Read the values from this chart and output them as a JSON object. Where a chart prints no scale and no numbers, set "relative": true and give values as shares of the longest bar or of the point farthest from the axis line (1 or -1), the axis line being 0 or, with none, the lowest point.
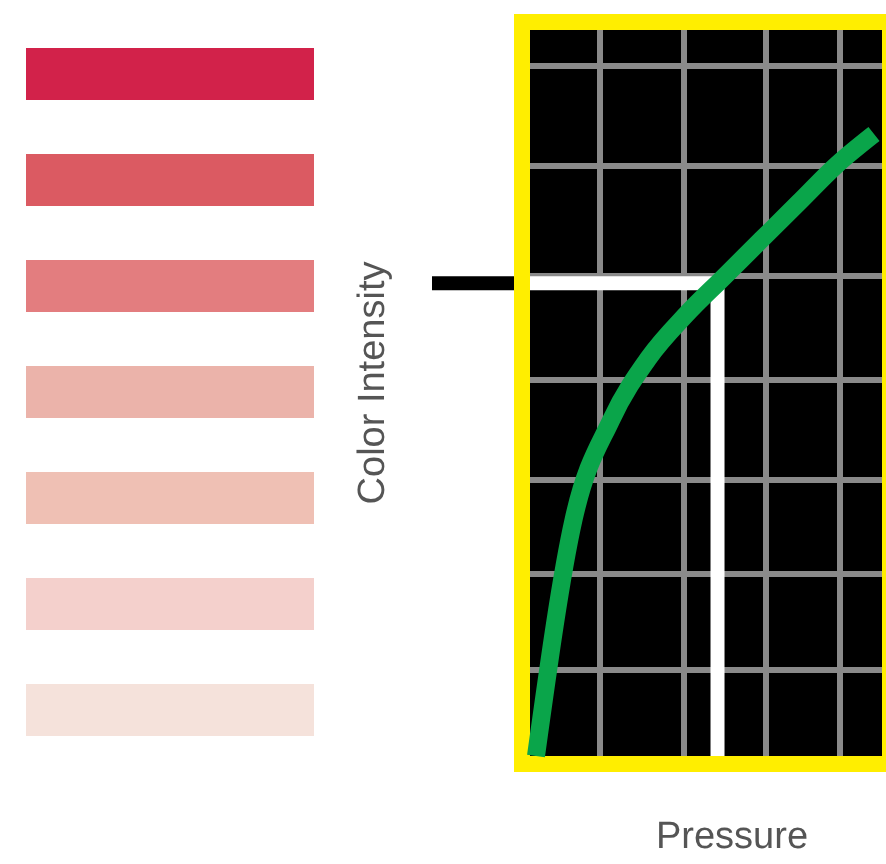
{
  "chart_data": {
    "type": "line",
    "relative": true,
    "xlabel": "Pressure",
    "ylabel": "Color Intensity",
    "categories": [
      null,
      null,
      null,
      null,
      null,
      null,
      null,
      null,
      null,
      null
    ],
    "series": [
      {
        "color": "#0aa54a",
        "values": [
          0,
          0.38,
          0.54,
          0.64,
          0.71,
          0.77,
          0.83,
          0.89,
          0.95,
          1
        ]
      }
    ],
    "ref_lines": [
      {
        "axis": "y",
        "value": 0.76,
        "color": "#ffffff"
      }
    ],
    "grid": true,
    "line_style": "solid"
  }
}
